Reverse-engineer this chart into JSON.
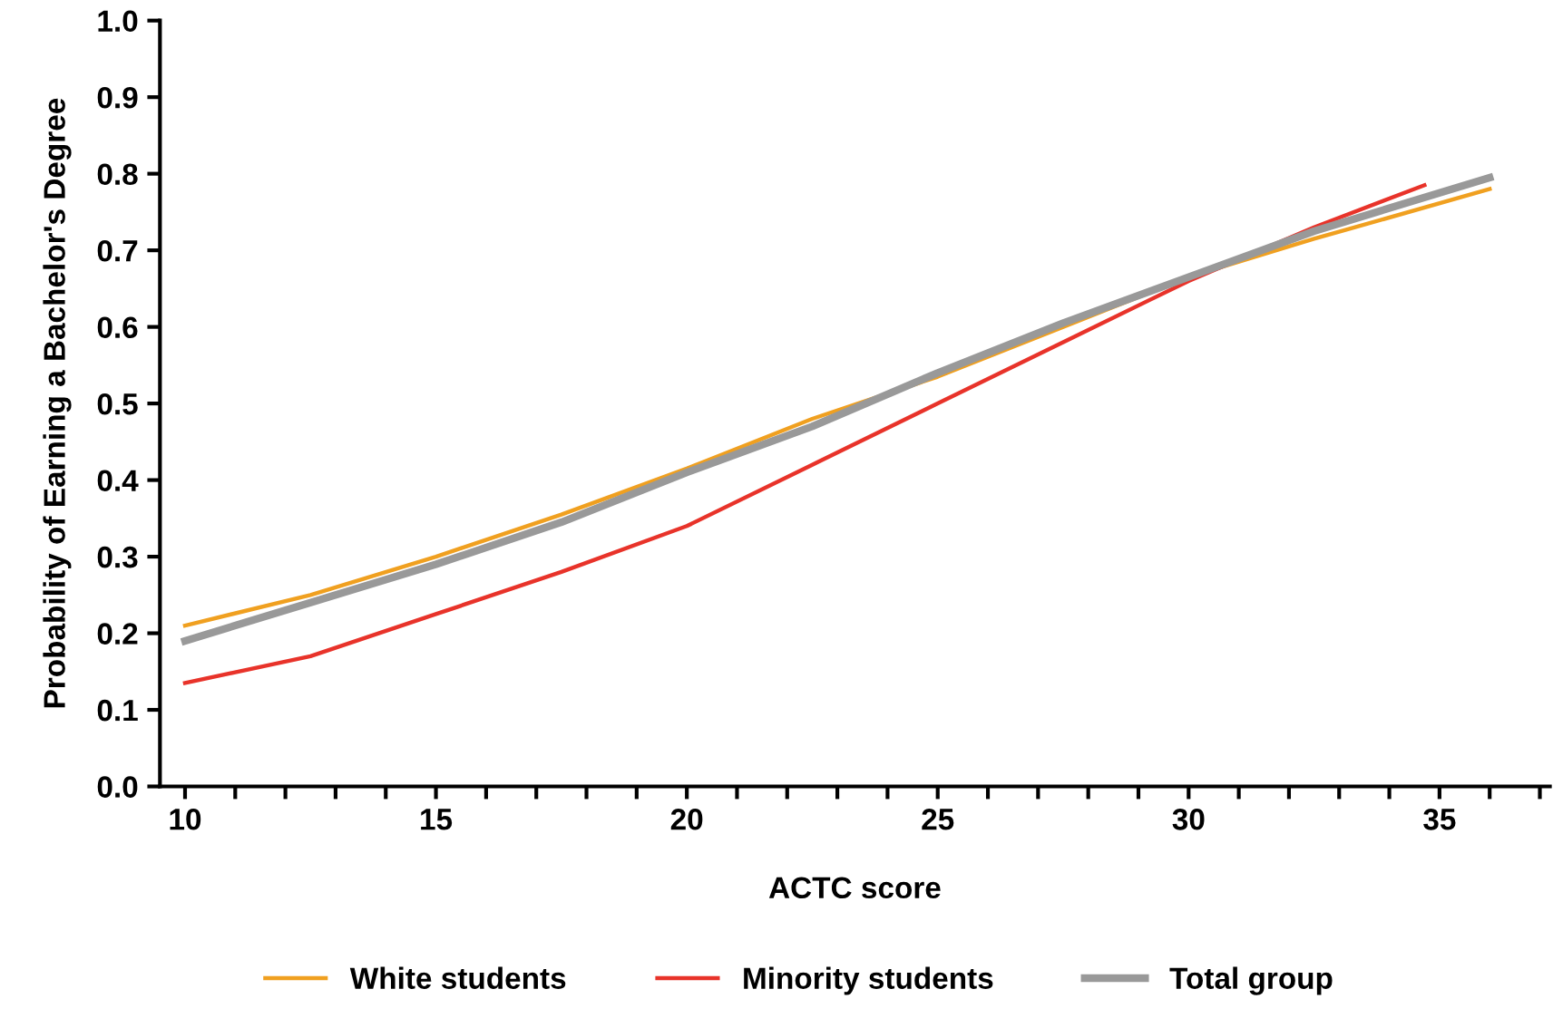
{
  "chart_data": {
    "type": "line",
    "xlabel": "ACTC score",
    "ylabel": "Probability of Earning a Bachelor's Degree",
    "xlim": [
      9.5,
      37.2
    ],
    "ylim": [
      0,
      1.0
    ],
    "xticks": [
      10,
      {
        "value": 11,
        "label": null
      },
      {
        "value": 12,
        "label": null
      },
      {
        "value": 13,
        "label": null
      },
      {
        "value": 14,
        "label": null
      },
      15,
      {
        "value": 16,
        "label": null
      },
      {
        "value": 17,
        "label": null
      },
      {
        "value": 18,
        "label": null
      },
      {
        "value": 19,
        "label": null
      },
      20,
      {
        "value": 21,
        "label": null
      },
      {
        "value": 22,
        "label": null
      },
      {
        "value": 23,
        "label": null
      },
      {
        "value": 24,
        "label": null
      },
      25,
      {
        "value": 26,
        "label": null
      },
      {
        "value": 27,
        "label": null
      },
      {
        "value": 28,
        "label": null
      },
      {
        "value": 29,
        "label": null
      },
      30,
      {
        "value": 31,
        "label": null
      },
      {
        "value": 32,
        "label": null
      },
      {
        "value": 33,
        "label": null
      },
      {
        "value": 34,
        "label": null
      },
      35,
      {
        "value": 36,
        "label": null
      },
      {
        "value": 37,
        "label": null
      }
    ],
    "yticks": [
      {
        "value": 0,
        "label": "0.0"
      },
      0.1,
      0.2,
      0.3,
      0.4,
      0.5,
      0.6,
      0.7,
      0.8,
      0.9,
      {
        "value": 1,
        "label": "1.0"
      }
    ],
    "grid": false,
    "legend": "bottom",
    "marker": "none",
    "line_style": "solid",
    "series": [
      {
        "name": "White students",
        "color": "#f0a020",
        "x": [
          10,
          12.5,
          15,
          17.5,
          20,
          22.5,
          25,
          27.5,
          30,
          32.5,
          36
        ],
        "values": [
          0.21,
          0.25,
          0.3,
          0.355,
          0.415,
          0.48,
          0.535,
          0.6,
          0.665,
          0.715,
          0.78
        ]
      },
      {
        "name": "Minority students",
        "color": "#e8332a",
        "x": [
          10,
          12.5,
          15,
          17.5,
          20,
          22.5,
          25,
          27.5,
          30,
          32.5,
          34.7
        ],
        "values": [
          0.135,
          0.17,
          0.225,
          0.28,
          0.34,
          0.42,
          0.5,
          0.58,
          0.66,
          0.73,
          0.785
        ]
      },
      {
        "name": "Total group",
        "color": "#999999",
        "x": [
          10,
          12.5,
          15,
          17.5,
          20,
          22.5,
          25,
          27.5,
          30,
          32.5,
          36
        ],
        "values": [
          0.19,
          0.24,
          0.29,
          0.345,
          0.41,
          0.47,
          0.54,
          0.605,
          0.665,
          0.725,
          0.795
        ]
      }
    ]
  }
}
